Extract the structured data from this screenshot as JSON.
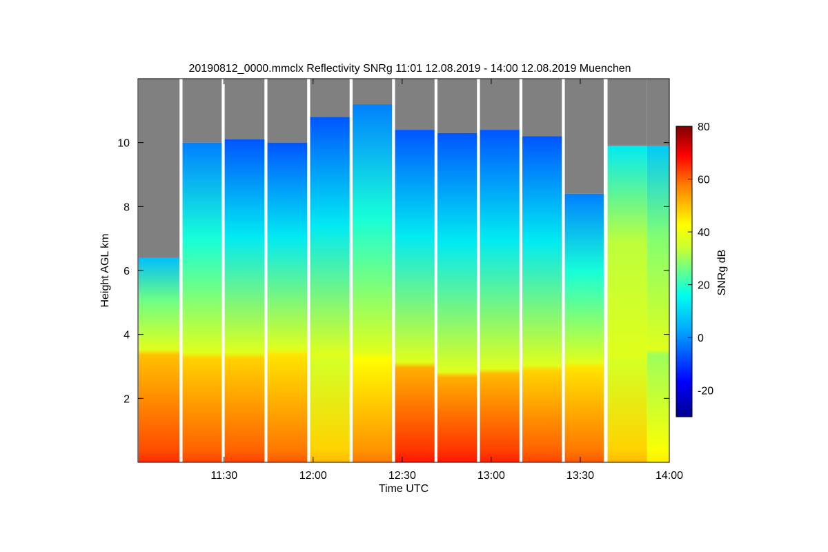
{
  "chart_data": {
    "type": "heatmap",
    "title": "20190812_0000.mmclx Reflectivity SNRg   11:01 12.08.2019 - 14:00 12.08.2019 Muenchen",
    "xlabel": "Time UTC",
    "ylabel": "Height AGL km",
    "xlim_minutes": [
      661,
      840
    ],
    "ylim_km": [
      0,
      12
    ],
    "x_ticks": [
      {
        "minute": 690,
        "label": "11:30"
      },
      {
        "minute": 720,
        "label": "12:00"
      },
      {
        "minute": 750,
        "label": "12:30"
      },
      {
        "minute": 780,
        "label": "13:00"
      },
      {
        "minute": 810,
        "label": "13:30"
      },
      {
        "minute": 840,
        "label": "14:00"
      }
    ],
    "y_ticks": [
      {
        "value": 2,
        "label": "2"
      },
      {
        "value": 4,
        "label": "4"
      },
      {
        "value": 6,
        "label": "6"
      },
      {
        "value": 8,
        "label": "8"
      },
      {
        "value": 10,
        "label": "10"
      }
    ],
    "colorbar": {
      "label": "SNRg dB",
      "range": [
        -30,
        80
      ],
      "ticks": [
        {
          "value": -20,
          "label": "-20"
        },
        {
          "value": 0,
          "label": "0"
        },
        {
          "value": 20,
          "label": "20"
        },
        {
          "value": 40,
          "label": "40"
        },
        {
          "value": 60,
          "label": "60"
        },
        {
          "value": 80,
          "label": "80"
        }
      ]
    },
    "colors": {
      "no_signal": "#808080",
      "gap": "#ffffff",
      "axis": "#000000"
    },
    "scan_segments": [
      {
        "start": 661.2,
        "end": 675.0,
        "cloud_top_km": 6.4,
        "low_top_km": 3.4,
        "surface_db": 62,
        "upper_db": 18
      },
      {
        "start": 676.0,
        "end": 689.2,
        "cloud_top_km": 10.0,
        "low_top_km": 3.3,
        "surface_db": 60,
        "upper_db": 10
      },
      {
        "start": 690.2,
        "end": 703.6,
        "cloud_top_km": 10.1,
        "low_top_km": 3.3,
        "surface_db": 60,
        "upper_db": 5
      },
      {
        "start": 704.6,
        "end": 718.0,
        "cloud_top_km": 10.0,
        "low_top_km": 3.4,
        "surface_db": 58,
        "upper_db": 5
      },
      {
        "start": 719.0,
        "end": 732.3,
        "cloud_top_km": 10.8,
        "low_top_km": 3.2,
        "surface_db": 48,
        "upper_db": 5
      },
      {
        "start": 733.3,
        "end": 746.6,
        "cloud_top_km": 11.2,
        "low_top_km": 3.3,
        "surface_db": 55,
        "upper_db": 10
      },
      {
        "start": 747.6,
        "end": 760.9,
        "cloud_top_km": 10.4,
        "low_top_km": 3.0,
        "surface_db": 64,
        "upper_db": 5
      },
      {
        "start": 761.9,
        "end": 775.2,
        "cloud_top_km": 10.3,
        "low_top_km": 2.7,
        "surface_db": 64,
        "upper_db": 5
      },
      {
        "start": 776.2,
        "end": 789.5,
        "cloud_top_km": 10.4,
        "low_top_km": 2.8,
        "surface_db": 63,
        "upper_db": 5
      },
      {
        "start": 790.5,
        "end": 803.8,
        "cloud_top_km": 10.2,
        "low_top_km": 2.9,
        "surface_db": 60,
        "upper_db": 5
      },
      {
        "start": 804.8,
        "end": 817.9,
        "cloud_top_km": 8.4,
        "low_top_km": 3.0,
        "surface_db": 58,
        "upper_db": 10
      },
      {
        "start": 819.2,
        "end": 832.5,
        "cloud_top_km": 9.9,
        "low_top_km": 3.2,
        "surface_db": 48,
        "upper_db": 25
      },
      {
        "start": 832.5,
        "end": 840.0,
        "cloud_top_km": 9.9,
        "low_top_km": 3.4,
        "surface_db": 42,
        "upper_db": 20
      }
    ]
  }
}
